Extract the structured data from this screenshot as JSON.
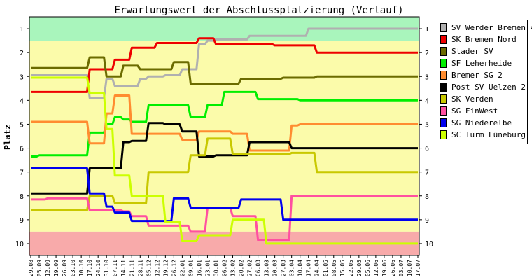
{
  "chart_data": {
    "type": "line",
    "title": "Erwartungswert der Abschlussplatzierung (Verlauf)",
    "ylabel": "Platz",
    "xlabel": "",
    "ylim": [
      10.5,
      0.5
    ],
    "y_ticks": [
      1,
      2,
      3,
      4,
      5,
      6,
      7,
      8,
      9,
      10
    ],
    "grid": false,
    "legend_position": "right",
    "bands": [
      {
        "from": 0.5,
        "to": 1.5,
        "color": "#a9f5bc"
      },
      {
        "from": 1.5,
        "to": 9.5,
        "color": "#fbfbaa"
      },
      {
        "from": 9.5,
        "to": 10.5,
        "color": "#f8aaaa"
      }
    ],
    "categories": [
      "29.08",
      "05.09",
      "12.09",
      "19.09",
      "26.09",
      "03.10",
      "10.10",
      "17.10",
      "24.10",
      "31.10",
      "07.11",
      "14.11",
      "21.11",
      "28.11",
      "05.12",
      "12.12",
      "19.12",
      "26.12",
      "02.01",
      "09.01",
      "16.01",
      "23.01",
      "30.01",
      "06.02",
      "13.02",
      "20.02",
      "27.02",
      "06.03",
      "13.03",
      "20.03",
      "27.03",
      "03.04",
      "10.04",
      "17.04",
      "24.04",
      "01.05",
      "08.05",
      "15.05",
      "22.05",
      "29.05",
      "05.06",
      "12.06",
      "19.06",
      "26.06",
      "03.07",
      "10.07",
      "17.07"
    ],
    "series": [
      {
        "name": "SV Werder Bremen 4",
        "color": "#b0b0b0",
        "values": [
          2.95,
          2.95,
          2.95,
          2.95,
          2.95,
          2.95,
          2.95,
          3.9,
          3.9,
          3.1,
          3.4,
          3.4,
          3.4,
          3.1,
          3.0,
          3.0,
          2.95,
          2.95,
          2.7,
          2.7,
          1.65,
          1.5,
          1.45,
          1.45,
          1.45,
          1.45,
          1.3,
          1.3,
          1.3,
          1.3,
          1.3,
          1.3,
          1.3,
          1.0,
          1.0,
          1.0,
          1.0,
          1.0,
          1.0,
          1.0,
          1.0,
          1.0,
          1.0,
          1.0,
          1.0,
          1.0,
          1.0
        ]
      },
      {
        "name": "SK Bremen Nord",
        "color": "#ee0000",
        "values": [
          3.65,
          3.65,
          3.65,
          3.65,
          3.65,
          3.65,
          3.65,
          2.7,
          2.7,
          2.7,
          2.3,
          2.3,
          1.8,
          1.8,
          1.8,
          1.6,
          1.6,
          1.6,
          1.6,
          1.6,
          1.4,
          1.4,
          1.65,
          1.65,
          1.65,
          1.65,
          1.65,
          1.65,
          1.65,
          1.7,
          1.7,
          1.7,
          1.7,
          1.7,
          2.0,
          2.0,
          2.0,
          2.0,
          2.0,
          2.0,
          2.0,
          2.0,
          2.0,
          2.0,
          2.0,
          2.0,
          2.0
        ]
      },
      {
        "name": "Stader SV",
        "color": "#6b6b00",
        "values": [
          2.65,
          2.65,
          2.65,
          2.65,
          2.65,
          2.65,
          2.65,
          2.2,
          2.2,
          3.0,
          3.0,
          2.55,
          2.55,
          2.7,
          2.7,
          2.7,
          2.7,
          2.4,
          2.4,
          3.3,
          3.3,
          3.3,
          3.3,
          3.3,
          3.3,
          3.1,
          3.1,
          3.1,
          3.1,
          3.1,
          3.05,
          3.05,
          3.05,
          3.05,
          3.0,
          3.0,
          3.0,
          3.0,
          3.0,
          3.0,
          3.0,
          3.0,
          3.0,
          3.0,
          3.0,
          3.0,
          3.0
        ]
      },
      {
        "name": "SF Leherheide",
        "color": "#00ee00",
        "values": [
          6.35,
          6.3,
          6.3,
          6.3,
          6.3,
          6.3,
          6.3,
          5.35,
          5.35,
          5.0,
          4.7,
          4.8,
          4.9,
          4.9,
          4.2,
          4.2,
          4.2,
          4.2,
          4.2,
          4.7,
          4.7,
          4.2,
          4.2,
          3.65,
          3.65,
          3.65,
          3.65,
          3.95,
          3.95,
          3.95,
          3.95,
          3.95,
          4.0,
          4.0,
          4.0,
          4.0,
          4.0,
          4.0,
          4.0,
          4.0,
          4.0,
          4.0,
          4.0,
          4.0,
          4.0,
          4.0,
          4.0
        ]
      },
      {
        "name": "Bremer SG 2",
        "color": "#ff8c30",
        "values": [
          4.9,
          4.9,
          4.9,
          4.9,
          4.9,
          4.9,
          4.9,
          5.8,
          5.8,
          4.55,
          3.8,
          3.8,
          5.4,
          5.4,
          5.4,
          5.4,
          5.4,
          5.4,
          5.65,
          5.65,
          5.3,
          5.3,
          5.3,
          5.3,
          5.4,
          5.4,
          6.1,
          6.1,
          6.1,
          6.1,
          6.1,
          5.05,
          5.0,
          5.0,
          5.0,
          5.0,
          5.0,
          5.0,
          5.0,
          5.0,
          5.0,
          5.0,
          5.0,
          5.0,
          5.0,
          5.0,
          5.0
        ]
      },
      {
        "name": "Post SV Uelzen 2",
        "color": "#000000",
        "values": [
          7.9,
          7.9,
          7.9,
          7.9,
          7.9,
          7.9,
          7.9,
          6.85,
          6.85,
          6.85,
          6.85,
          5.75,
          5.7,
          5.7,
          4.95,
          4.95,
          5.0,
          5.0,
          5.3,
          5.3,
          6.35,
          6.35,
          6.3,
          6.3,
          6.3,
          6.3,
          5.75,
          5.75,
          5.75,
          5.75,
          5.75,
          6.0,
          6.0,
          6.0,
          6.0,
          6.0,
          6.0,
          6.0,
          6.0,
          6.0,
          6.0,
          6.0,
          6.0,
          6.0,
          6.0,
          6.0,
          6.0
        ]
      },
      {
        "name": "SK Verden",
        "color": "#c8c800",
        "values": [
          8.6,
          8.6,
          8.6,
          8.6,
          8.6,
          8.6,
          8.6,
          8.0,
          8.0,
          8.0,
          8.3,
          8.3,
          8.3,
          8.3,
          7.0,
          7.0,
          7.0,
          7.0,
          7.0,
          6.3,
          6.3,
          5.6,
          5.6,
          5.6,
          6.25,
          6.25,
          6.25,
          6.25,
          6.25,
          6.25,
          6.25,
          6.2,
          6.2,
          6.2,
          7.0,
          7.0,
          7.0,
          7.0,
          7.0,
          7.0,
          7.0,
          7.0,
          7.0,
          7.0,
          7.0,
          7.0,
          7.0
        ]
      },
      {
        "name": "SG FinWest",
        "color": "#ff50a0",
        "values": [
          8.15,
          8.15,
          8.1,
          8.1,
          8.1,
          8.1,
          8.1,
          8.6,
          8.6,
          8.6,
          8.6,
          8.65,
          8.85,
          8.85,
          9.25,
          9.25,
          9.25,
          9.25,
          9.25,
          9.5,
          9.5,
          8.5,
          8.5,
          8.5,
          8.85,
          8.85,
          8.85,
          9.85,
          9.85,
          9.85,
          9.85,
          8.0,
          8.0,
          8.0,
          8.0,
          8.0,
          8.0,
          8.0,
          8.0,
          8.0,
          8.0,
          8.0,
          8.0,
          8.0,
          8.0,
          8.0,
          8.0
        ]
      },
      {
        "name": "SG Niederelbe",
        "color": "#0000ee",
        "values": [
          6.85,
          6.85,
          6.85,
          6.85,
          6.85,
          6.85,
          6.85,
          7.9,
          7.9,
          8.45,
          8.7,
          8.7,
          9.05,
          9.05,
          9.05,
          9.05,
          9.05,
          8.1,
          8.1,
          8.5,
          8.5,
          8.5,
          8.5,
          8.5,
          8.5,
          8.15,
          8.15,
          8.15,
          8.15,
          8.15,
          9.0,
          9.0,
          9.0,
          9.0,
          9.0,
          9.0,
          9.0,
          9.0,
          9.0,
          9.0,
          9.0,
          9.0,
          9.0,
          9.0,
          9.0,
          9.0,
          9.0
        ]
      },
      {
        "name": "SC Turm Lüneburg",
        "color": "#ccff00",
        "values": [
          3.05,
          3.05,
          3.05,
          3.05,
          3.05,
          3.05,
          3.05,
          3.7,
          3.7,
          5.2,
          7.15,
          7.15,
          8.0,
          8.0,
          8.0,
          8.0,
          9.1,
          9.1,
          9.9,
          9.9,
          9.65,
          9.65,
          9.65,
          9.65,
          9.0,
          9.0,
          9.0,
          9.0,
          10.0,
          10.0,
          10.0,
          10.0,
          10.0,
          10.0,
          10.0,
          10.0,
          10.0,
          10.0,
          10.0,
          10.0,
          10.0,
          10.0,
          10.0,
          10.0,
          10.0,
          10.0,
          10.0
        ]
      }
    ]
  }
}
